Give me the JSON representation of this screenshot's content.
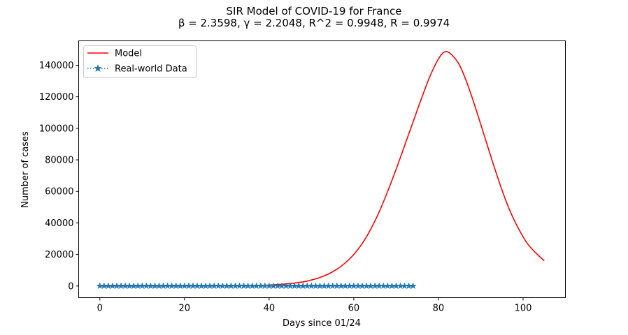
{
  "chart_data": {
    "type": "line",
    "title": "SIR Model of COVID-19 for France",
    "subtitle": "β = 2.3598, γ = 2.2048, R^2 = 0.9948, R = 0.9974",
    "xlabel": "Days since 01/24",
    "ylabel": "Number of cases",
    "xlim": [
      -5,
      110
    ],
    "ylim": [
      -7400,
      155500
    ],
    "xticks": [
      0,
      20,
      40,
      60,
      80,
      100
    ],
    "yticks": [
      0,
      20000,
      40000,
      60000,
      80000,
      100000,
      120000,
      140000
    ],
    "grid": false,
    "legend_position": "upper-left",
    "colors": {
      "model": "#ff0000",
      "data": "#1f77b4"
    },
    "series": [
      {
        "name": "Model",
        "style": "solid-line",
        "x": [
          0,
          10,
          20,
          30,
          35,
          40,
          44,
          48,
          50,
          52,
          54,
          56,
          58,
          60,
          62,
          64,
          66,
          68,
          70,
          72,
          74,
          76,
          78,
          80,
          81.5,
          83,
          85,
          87,
          89,
          91,
          93,
          95,
          97,
          99,
          101,
          103,
          105
        ],
        "y": [
          0,
          10,
          40,
          150,
          300,
          600,
          1300,
          2600,
          3800,
          5400,
          7600,
          10600,
          14700,
          20000,
          27000,
          36000,
          47000,
          60000,
          74000,
          89000,
          104000,
          119000,
          133000,
          144000,
          148500,
          147000,
          140000,
          127000,
          111000,
          94000,
          77000,
          61000,
          47000,
          36000,
          27000,
          21000,
          16000
        ]
      },
      {
        "name": "Real-world Data",
        "style": "dotted-line-star-markers",
        "x": [
          0,
          1,
          2,
          3,
          4,
          5,
          6,
          7,
          8,
          9,
          10,
          11,
          12,
          13,
          14,
          15,
          16,
          17,
          18,
          19,
          20,
          21,
          22,
          23,
          24,
          25,
          26,
          27,
          28,
          29,
          30,
          31,
          32,
          33,
          34,
          35,
          36,
          37,
          38,
          39,
          40,
          41,
          42,
          43,
          44,
          45,
          46,
          47,
          48,
          49,
          50,
          51,
          52,
          53,
          54,
          55,
          56,
          57,
          58,
          59,
          60,
          61,
          62,
          63,
          64,
          65,
          66,
          67,
          68,
          69,
          70,
          71,
          72,
          73,
          74
        ],
        "y": [
          0,
          0,
          0,
          0,
          0,
          0,
          0,
          0,
          0,
          0,
          0,
          0,
          0,
          0,
          0,
          0,
          0,
          0,
          0,
          0,
          0,
          0,
          0,
          0,
          0,
          0,
          0,
          0,
          0,
          0,
          0,
          0,
          0,
          0,
          0,
          0,
          0,
          0,
          0,
          0,
          0,
          0,
          0,
          0,
          0,
          0,
          0,
          0,
          0,
          0,
          0,
          0,
          0,
          0,
          0,
          0,
          0,
          0,
          0,
          0,
          0,
          0,
          0,
          0,
          0,
          0,
          0,
          0,
          0,
          0,
          0,
          0,
          0,
          0,
          0
        ]
      }
    ]
  }
}
